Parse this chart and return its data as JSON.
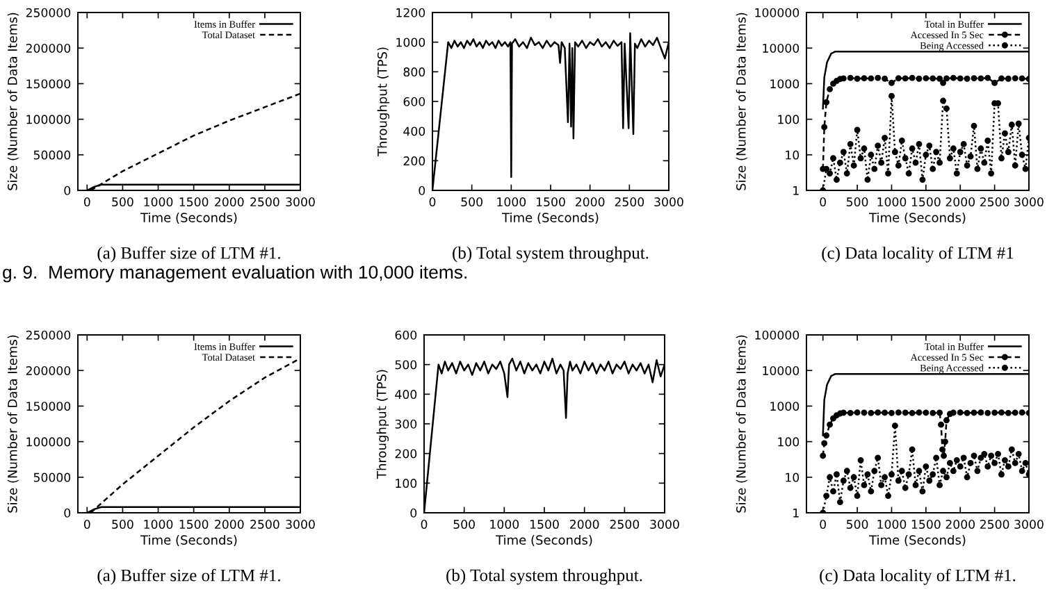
{
  "chart_data": [
    {
      "type": "line",
      "title": "(a) Buffer size of LTM #1.",
      "xlabel": "Time (Seconds)",
      "ylabel": "Size (Number of Data Items)",
      "xlim": [
        -130,
        3000
      ],
      "xticks": [
        0,
        500,
        1000,
        1500,
        2000,
        2500,
        3000
      ],
      "ylim": [
        0,
        250000
      ],
      "yticks": [
        0,
        50000,
        100000,
        150000,
        200000,
        250000
      ],
      "legend": "top right",
      "grid": false,
      "annotations": [
        "g. 9.  Memory management evaluation with 10,000 items."
      ],
      "series": [
        {
          "name": "Items in Buffer",
          "color": "#000000",
          "line_style": "solid",
          "marker": "none",
          "x": [
            0,
            100,
            200,
            3000
          ],
          "values": [
            0,
            5000,
            8000,
            8000
          ]
        },
        {
          "name": "Total Dataset",
          "color": "#000000",
          "line_style": "dashed",
          "marker": "none",
          "x": [
            50,
            500,
            1000,
            1500,
            2000,
            2500,
            3000
          ],
          "values": [
            0,
            27000,
            52000,
            77000,
            98000,
            117000,
            136000
          ]
        }
      ]
    },
    {
      "type": "line",
      "title": "(b) Total system throughput.",
      "xlabel": "Time (Seconds)",
      "ylabel": "Throughput (TPS)",
      "xlim": [
        0,
        3000
      ],
      "xticks": [
        0,
        500,
        1000,
        1500,
        2000,
        2500,
        3000
      ],
      "ylim": [
        0,
        1200
      ],
      "yticks": [
        0,
        200,
        400,
        600,
        800,
        1000,
        1200
      ],
      "grid": false,
      "series": [
        {
          "color": "#000000",
          "line_style": "solid",
          "marker": "none",
          "x": [
            0,
            200,
            240,
            280,
            320,
            360,
            400,
            440,
            480,
            520,
            560,
            600,
            640,
            680,
            720,
            760,
            800,
            840,
            880,
            920,
            960,
            990,
            1000,
            1010,
            1050,
            1100,
            1150,
            1200,
            1250,
            1300,
            1350,
            1400,
            1450,
            1500,
            1550,
            1600,
            1620,
            1640,
            1680,
            1720,
            1740,
            1760,
            1775,
            1790,
            1810,
            1850,
            1900,
            1950,
            2000,
            2050,
            2100,
            2150,
            2200,
            2250,
            2300,
            2350,
            2400,
            2420,
            2440,
            2490,
            2510,
            2550,
            2570,
            2600,
            2650,
            2700,
            2750,
            2800,
            2850,
            2900,
            2950,
            3000
          ],
          "values": [
            0,
            1000,
            960,
            1010,
            970,
            1000,
            960,
            1010,
            980,
            1020,
            970,
            1000,
            960,
            1010,
            980,
            1000,
            960,
            1010,
            975,
            1000,
            970,
            1000,
            90,
            990,
            1020,
            970,
            1000,
            960,
            1030,
            980,
            1000,
            960,
            1010,
            970,
            1000,
            980,
            860,
            1000,
            960,
            460,
            990,
            430,
            960,
            350,
            1000,
            970,
            1010,
            960,
            1000,
            980,
            1020,
            970,
            1000,
            960,
            1010,
            975,
            1000,
            420,
            990,
            420,
            1060,
            380,
            990,
            960,
            1020,
            970,
            1010,
            980,
            1030,
            960,
            890,
            1000
          ]
        }
      ]
    },
    {
      "type": "line",
      "title": "(c) Data locality of LTM #1",
      "xlabel": "Time (Seconds)",
      "ylabel": "Size (Number of Data Items)",
      "log": "y",
      "xlim": [
        -240,
        3000
      ],
      "xticks": [
        0,
        500,
        1000,
        1500,
        2000,
        2500,
        3000
      ],
      "ylim": [
        1,
        100000
      ],
      "yticks": [
        1,
        10,
        100,
        1000,
        10000,
        100000
      ],
      "legend": "top right",
      "grid": false,
      "series": [
        {
          "name": "Total in Buffer",
          "color": "#000000",
          "line_style": "solid",
          "marker": "none",
          "x": [
            0,
            20,
            60,
            120,
            180,
            3000
          ],
          "values": [
            200,
            1500,
            4000,
            7000,
            8000,
            8000
          ]
        },
        {
          "name": "Accessed In 5 Sec",
          "color": "#000000",
          "line_style": "dashed",
          "marker": "circle",
          "x": [
            0,
            20,
            50,
            100,
            150,
            200,
            250,
            300,
            400,
            500,
            600,
            700,
            800,
            900,
            1000,
            1100,
            1200,
            1300,
            1400,
            1500,
            1600,
            1700,
            1750,
            1800,
            1900,
            2000,
            2100,
            2200,
            2300,
            2400,
            2500,
            2600,
            2700,
            2800,
            2900,
            3000
          ],
          "values": [
            4,
            60,
            300,
            700,
            1000,
            1200,
            1350,
            1400,
            1450,
            1380,
            1420,
            1400,
            1450,
            1380,
            1050,
            1420,
            1400,
            1450,
            1380,
            1420,
            1400,
            1380,
            1050,
            1400,
            1450,
            1400,
            1380,
            1420,
            1400,
            1450,
            1050,
            1400,
            1380,
            1420,
            1400,
            1350
          ]
        },
        {
          "name": "Being Accessed",
          "color": "#000000",
          "line_style": "dotted",
          "marker": "circle",
          "x": [
            0,
            50,
            100,
            150,
            200,
            250,
            300,
            350,
            400,
            450,
            500,
            550,
            600,
            650,
            700,
            750,
            800,
            850,
            900,
            950,
            1000,
            1050,
            1100,
            1150,
            1200,
            1250,
            1300,
            1350,
            1400,
            1450,
            1500,
            1550,
            1600,
            1650,
            1700,
            1750,
            1800,
            1850,
            1900,
            1950,
            2000,
            2050,
            2100,
            2150,
            2200,
            2250,
            2300,
            2350,
            2400,
            2450,
            2500,
            2550,
            2600,
            2650,
            2700,
            2750,
            2800,
            2850,
            2900,
            2950,
            3000
          ],
          "values": [
            1,
            4,
            3,
            8,
            2,
            6,
            12,
            3,
            20,
            5,
            50,
            8,
            15,
            2,
            10,
            4,
            18,
            6,
            30,
            3,
            450,
            12,
            5,
            25,
            8,
            3,
            15,
            6,
            20,
            2,
            10,
            18,
            4,
            12,
            6,
            330,
            200,
            8,
            15,
            3,
            12,
            20,
            5,
            9,
            65,
            4,
            15,
            6,
            25,
            3,
            280,
            280,
            8,
            40,
            12,
            70,
            5,
            75,
            10,
            4,
            30
          ]
        }
      ]
    },
    {
      "type": "line",
      "title": "(a) Buffer size of LTM #1.",
      "xlabel": "Time (Seconds)",
      "ylabel": "Size (Number of Data Items)",
      "xlim": [
        -130,
        3000
      ],
      "xticks": [
        0,
        500,
        1000,
        1500,
        2000,
        2500,
        3000
      ],
      "ylim": [
        0,
        250000
      ],
      "yticks": [
        0,
        50000,
        100000,
        150000,
        200000,
        250000
      ],
      "legend": "top right",
      "grid": false,
      "series": [
        {
          "name": "Items in Buffer",
          "color": "#000000",
          "line_style": "solid",
          "marker": "none",
          "x": [
            0,
            100,
            200,
            3000
          ],
          "values": [
            0,
            5000,
            8000,
            8000
          ]
        },
        {
          "name": "Total Dataset",
          "color": "#000000",
          "line_style": "dashed",
          "marker": "none",
          "x": [
            50,
            500,
            1000,
            1500,
            2000,
            2500,
            3000
          ],
          "values": [
            0,
            40000,
            80000,
            120000,
            157000,
            190000,
            217000
          ]
        }
      ]
    },
    {
      "type": "line",
      "title": "(b) Total system throughput.",
      "xlabel": "Time (Seconds)",
      "ylabel": "Throughput (TPS)",
      "xlim": [
        0,
        3000
      ],
      "xticks": [
        0,
        500,
        1000,
        1500,
        2000,
        2500,
        3000
      ],
      "ylim": [
        0,
        600
      ],
      "yticks": [
        0,
        100,
        200,
        300,
        400,
        500,
        600
      ],
      "grid": false,
      "series": [
        {
          "color": "#000000",
          "line_style": "solid",
          "marker": "none",
          "x": [
            0,
            180,
            220,
            260,
            300,
            350,
            400,
            450,
            500,
            550,
            600,
            650,
            700,
            750,
            800,
            850,
            900,
            950,
            1000,
            1040,
            1060,
            1100,
            1150,
            1200,
            1250,
            1300,
            1350,
            1400,
            1450,
            1500,
            1550,
            1600,
            1650,
            1700,
            1740,
            1770,
            1790,
            1820,
            1850,
            1900,
            1950,
            2000,
            2050,
            2100,
            2150,
            2200,
            2250,
            2300,
            2350,
            2400,
            2450,
            2500,
            2550,
            2600,
            2650,
            2700,
            2750,
            2800,
            2850,
            2900,
            2950,
            3000
          ],
          "values": [
            0,
            500,
            470,
            510,
            480,
            505,
            470,
            510,
            480,
            500,
            465,
            505,
            480,
            510,
            470,
            500,
            485,
            510,
            470,
            390,
            500,
            520,
            480,
            510,
            470,
            505,
            480,
            500,
            470,
            510,
            480,
            520,
            470,
            500,
            480,
            320,
            470,
            510,
            480,
            500,
            470,
            510,
            480,
            505,
            470,
            500,
            480,
            510,
            470,
            500,
            485,
            510,
            470,
            500,
            480,
            505,
            470,
            500,
            440,
            515,
            460,
            500
          ]
        }
      ]
    },
    {
      "type": "line",
      "title": "(c) Data locality of LTM #1.",
      "xlabel": "Time (Seconds)",
      "ylabel": "Size (Number of Data Items)",
      "log": "y",
      "xlim": [
        -240,
        3000
      ],
      "xticks": [
        0,
        500,
        1000,
        1500,
        2000,
        2500,
        3000
      ],
      "ylim": [
        1,
        100000
      ],
      "yticks": [
        1,
        10,
        100,
        1000,
        10000,
        100000
      ],
      "legend": "top right",
      "grid": false,
      "series": [
        {
          "name": "Total in Buffer",
          "color": "#000000",
          "line_style": "solid",
          "marker": "none",
          "x": [
            0,
            20,
            60,
            120,
            180,
            3000
          ],
          "values": [
            150,
            1500,
            4000,
            7000,
            8000,
            8000
          ]
        },
        {
          "name": "Accessed In 5 Sec",
          "color": "#000000",
          "line_style": "dashed",
          "marker": "circle",
          "x": [
            0,
            20,
            50,
            100,
            150,
            200,
            250,
            300,
            400,
            500,
            600,
            700,
            800,
            900,
            1000,
            1100,
            1200,
            1300,
            1400,
            1500,
            1600,
            1700,
            1720,
            1740,
            1760,
            1780,
            1800,
            1850,
            1900,
            2000,
            2100,
            2200,
            2300,
            2400,
            2500,
            2600,
            2700,
            2800,
            2900,
            3000
          ],
          "values": [
            40,
            90,
            150,
            300,
            450,
            550,
            620,
            650,
            640,
            660,
            650,
            640,
            660,
            650,
            640,
            660,
            650,
            640,
            660,
            650,
            640,
            650,
            300,
            60,
            40,
            100,
            400,
            600,
            650,
            660,
            640,
            650,
            660,
            640,
            650,
            660,
            640,
            650,
            660,
            640
          ]
        },
        {
          "name": "Being Accessed",
          "color": "#000000",
          "line_style": "dotted",
          "marker": "circle",
          "x": [
            0,
            50,
            100,
            150,
            200,
            250,
            300,
            350,
            400,
            450,
            500,
            550,
            600,
            650,
            700,
            750,
            800,
            850,
            900,
            950,
            1000,
            1050,
            1100,
            1150,
            1200,
            1250,
            1300,
            1350,
            1400,
            1450,
            1500,
            1550,
            1600,
            1650,
            1700,
            1750,
            1800,
            1850,
            1900,
            1950,
            2000,
            2050,
            2100,
            2150,
            2200,
            2250,
            2300,
            2350,
            2400,
            2450,
            2500,
            2550,
            2600,
            2650,
            2700,
            2750,
            2800,
            2850,
            2900,
            2950,
            3000
          ],
          "values": [
            1,
            3,
            10,
            4,
            12,
            2,
            8,
            15,
            5,
            10,
            3,
            30,
            6,
            12,
            4,
            15,
            35,
            6,
            10,
            3,
            12,
            280,
            8,
            15,
            5,
            12,
            60,
            6,
            15,
            4,
            20,
            8,
            12,
            35,
            6,
            15,
            10,
            25,
            15,
            30,
            20,
            35,
            10,
            25,
            40,
            15,
            35,
            45,
            20,
            40,
            25,
            45,
            12,
            30,
            20,
            60,
            25,
            45,
            15,
            25,
            12
          ]
        }
      ]
    }
  ]
}
